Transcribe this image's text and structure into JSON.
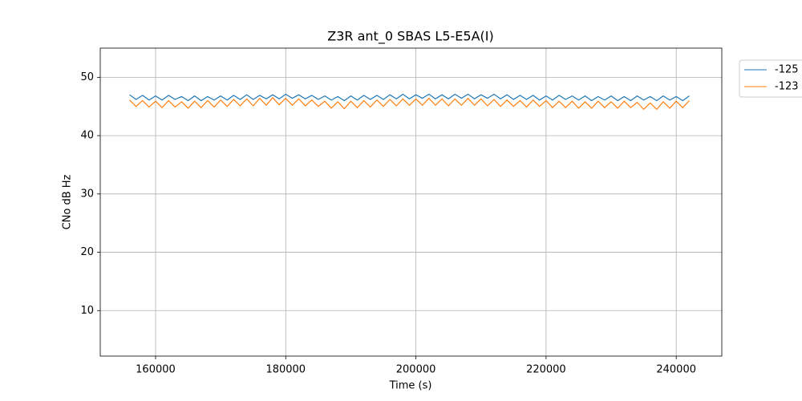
{
  "chart_data": {
    "type": "line",
    "title": "Z3R ant_0 SBAS L5-E5A(I)",
    "x_label": "Time (s)",
    "y_label": "CNo dB Hz",
    "x": [
      156000,
      157000,
      158000,
      159000,
      160000,
      161000,
      162000,
      163000,
      164000,
      165000,
      166000,
      167000,
      168000,
      169000,
      170000,
      171000,
      172000,
      173000,
      174000,
      175000,
      176000,
      177000,
      178000,
      179000,
      180000,
      181000,
      182000,
      183000,
      184000,
      185000,
      186000,
      187000,
      188000,
      189000,
      190000,
      191000,
      192000,
      193000,
      194000,
      195000,
      196000,
      197000,
      198000,
      199000,
      200000,
      201000,
      202000,
      203000,
      204000,
      205000,
      206000,
      207000,
      208000,
      209000,
      210000,
      211000,
      212000,
      213000,
      214000,
      215000,
      216000,
      217000,
      218000,
      219000,
      220000,
      221000,
      222000,
      223000,
      224000,
      225000,
      226000,
      227000,
      228000,
      229000,
      230000,
      231000,
      232000,
      233000,
      234000,
      235000,
      236000,
      237000,
      238000,
      239000,
      240000,
      241000,
      242000
    ],
    "series": [
      {
        "name": "-125",
        "color": "#1f77b4",
        "values": [
          47.0,
          46.2,
          46.9,
          46.1,
          46.8,
          46.1,
          46.9,
          46.2,
          46.7,
          46.0,
          46.8,
          46.0,
          46.7,
          46.1,
          46.8,
          46.1,
          46.9,
          46.2,
          47.0,
          46.2,
          46.9,
          46.3,
          47.0,
          46.3,
          47.1,
          46.4,
          47.0,
          46.3,
          46.9,
          46.2,
          46.8,
          46.1,
          46.7,
          46.0,
          46.8,
          46.1,
          46.9,
          46.2,
          46.9,
          46.2,
          47.0,
          46.3,
          47.1,
          46.3,
          47.0,
          46.4,
          47.1,
          46.3,
          47.0,
          46.3,
          47.1,
          46.4,
          47.1,
          46.3,
          47.0,
          46.4,
          47.1,
          46.3,
          47.0,
          46.2,
          46.9,
          46.2,
          46.9,
          46.1,
          46.8,
          46.1,
          46.9,
          46.2,
          46.8,
          46.1,
          46.8,
          46.0,
          46.7,
          46.1,
          46.8,
          46.0,
          46.7,
          46.0,
          46.8,
          46.1,
          46.7,
          46.0,
          46.8,
          46.1,
          46.7,
          46.0,
          46.8
        ]
      },
      {
        "name": "-123",
        "color": "#ff7f0e",
        "values": [
          46.1,
          45.0,
          46.0,
          44.9,
          45.9,
          44.8,
          46.0,
          44.9,
          45.8,
          44.7,
          45.9,
          44.8,
          46.0,
          44.9,
          46.1,
          45.0,
          46.2,
          45.1,
          46.3,
          45.1,
          46.4,
          45.2,
          46.5,
          45.3,
          46.4,
          45.2,
          46.3,
          45.1,
          46.1,
          45.0,
          45.9,
          44.7,
          45.8,
          44.6,
          45.9,
          44.8,
          46.0,
          44.9,
          46.1,
          45.0,
          46.2,
          45.1,
          46.3,
          45.2,
          46.3,
          45.2,
          46.4,
          45.2,
          46.3,
          45.1,
          46.3,
          45.2,
          46.4,
          45.2,
          46.3,
          45.1,
          46.2,
          45.0,
          46.1,
          45.0,
          46.0,
          44.9,
          46.1,
          45.0,
          46.0,
          44.8,
          45.9,
          44.8,
          45.9,
          44.7,
          45.8,
          44.7,
          45.9,
          44.8,
          45.8,
          44.7,
          45.9,
          44.8,
          45.7,
          44.5,
          45.6,
          44.5,
          45.8,
          44.7,
          45.9,
          44.8,
          46.0
        ]
      }
    ],
    "xlim": [
      151500,
      247000
    ],
    "ylim": [
      2.2,
      55
    ],
    "xticks": [
      160000,
      180000,
      200000,
      220000,
      240000
    ],
    "yticks": [
      10,
      20,
      30,
      40,
      50
    ],
    "grid": true,
    "legend": "outside-right"
  }
}
